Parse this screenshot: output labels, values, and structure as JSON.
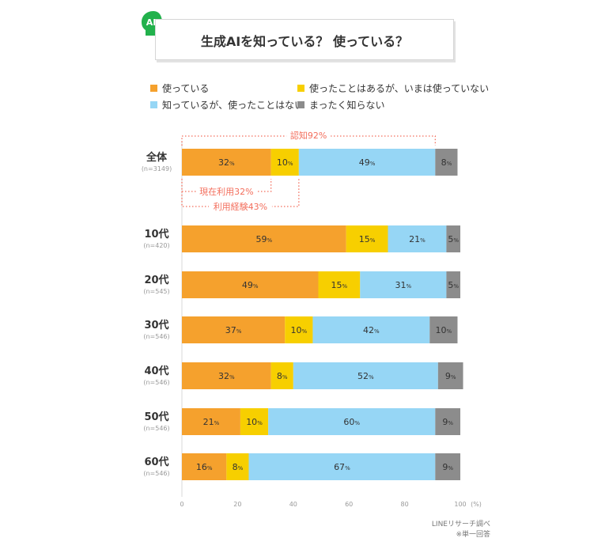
{
  "header": {
    "title": "生成AIを知っている？ 使っている？",
    "badge_text": "AI"
  },
  "legend": [
    {
      "label": "使っている",
      "color": "#f5a12d"
    },
    {
      "label": "使ったことはあるが、いまは使っていない",
      "color": "#f7cf00"
    },
    {
      "label": "知っているが、使ったことはない",
      "color": "#96d6f5"
    },
    {
      "label": "まったく知らない",
      "color": "#8c8c8c"
    }
  ],
  "annotations": {
    "awareness": "認知92%",
    "current_use": "現在利用32%",
    "experience": "利用経験43%",
    "annotation_color": "#f36e5c"
  },
  "chart_data": {
    "type": "bar",
    "orientation": "horizontal",
    "stacked": true,
    "categories": [
      {
        "label": "全体",
        "n": "(n=3149)"
      },
      {
        "label": "10代",
        "n": "(n=420)"
      },
      {
        "label": "20代",
        "n": "(n=545)"
      },
      {
        "label": "30代",
        "n": "(n=546)"
      },
      {
        "label": "40代",
        "n": "(n=546)"
      },
      {
        "label": "50代",
        "n": "(n=546)"
      },
      {
        "label": "60代",
        "n": "(n=546)"
      }
    ],
    "series": [
      {
        "name": "使っている",
        "color": "#f5a12d",
        "values": [
          32,
          59,
          49,
          37,
          32,
          21,
          16
        ]
      },
      {
        "name": "使ったことはあるが、いまは使っていない",
        "color": "#f7cf00",
        "values": [
          10,
          15,
          15,
          10,
          8,
          10,
          8
        ]
      },
      {
        "name": "知っているが、使ったことはない",
        "color": "#96d6f5",
        "values": [
          49,
          21,
          31,
          42,
          52,
          60,
          67
        ]
      },
      {
        "name": "まったく知らない",
        "color": "#8c8c8c",
        "values": [
          8,
          5,
          5,
          10,
          9,
          9,
          9
        ]
      }
    ],
    "value_suffix": "%",
    "xlim": [
      0,
      100
    ],
    "x_ticks": [
      0,
      20,
      40,
      60,
      80,
      100
    ],
    "x_unit": "(%)",
    "grid": false,
    "legend_position": "top"
  },
  "source": {
    "line1": "LINEリサーチ調べ",
    "line2": "※単一回答"
  }
}
